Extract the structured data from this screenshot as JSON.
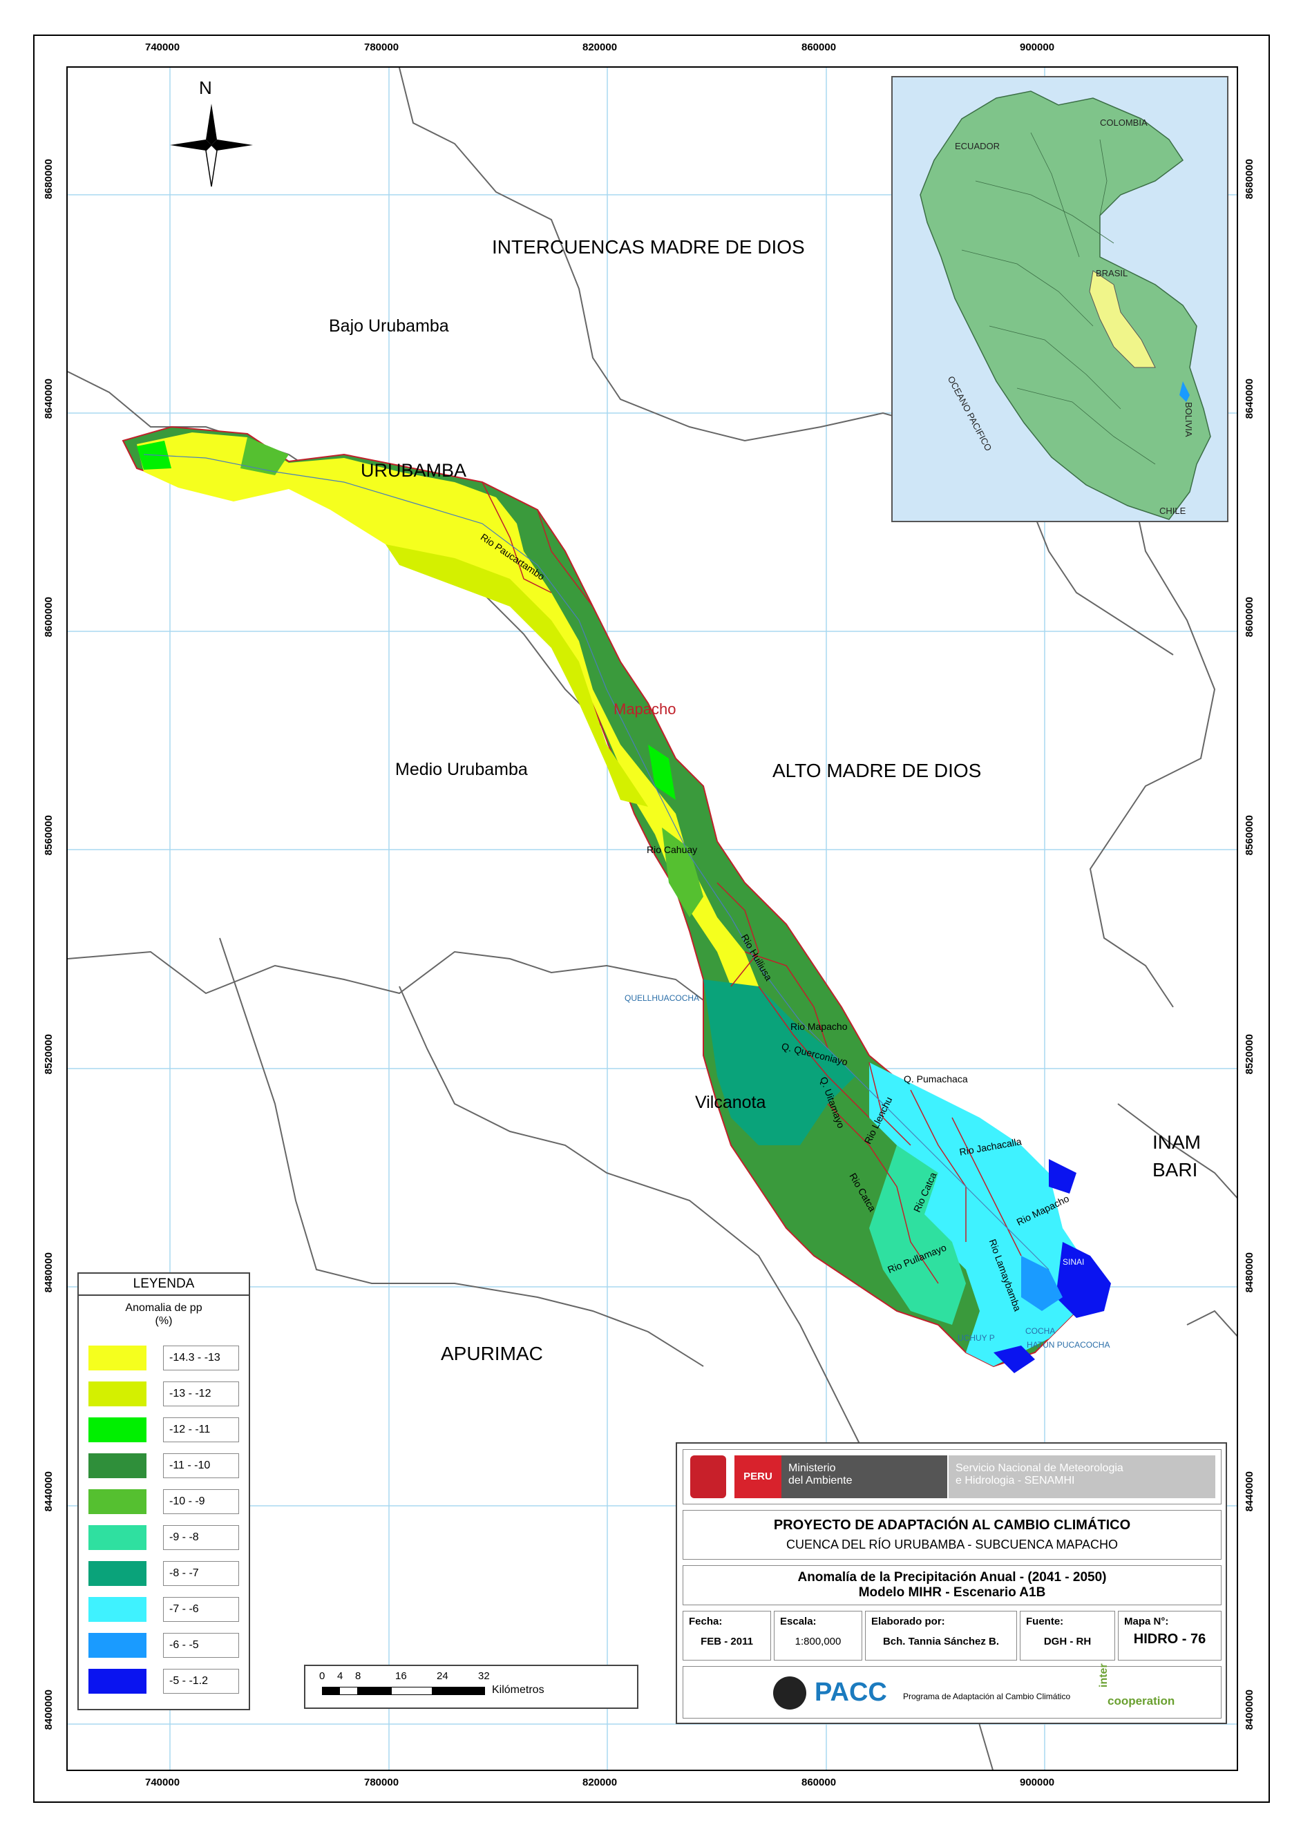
{
  "map": {
    "grid": {
      "x_ticks": [
        "740000",
        "780000",
        "820000",
        "860000",
        "900000"
      ],
      "y_ticks": [
        "8680000",
        "8640000",
        "8600000",
        "8560000",
        "8520000",
        "8480000",
        "8440000",
        "8400000"
      ]
    },
    "north_label": "N",
    "regions": {
      "intercuencas": "INTERCUENCAS MADRE DE DIOS",
      "bajo_urubamba": "Bajo Urubamba",
      "urubamba": "URUBAMBA",
      "medio_urubamba": "Medio Urubamba",
      "alto_madre": "ALTO MADRE DE DIOS",
      "vilcanota": "Vilcanota",
      "inam": "INAM",
      "bari": "BARI",
      "apurimac": "APURIMAC",
      "mapacho": "Mapacho"
    },
    "rivers": {
      "paucartambo": "Rio Paucartambo",
      "cahuay": "Rio Cahuay",
      "huiliusa": "Rio Huiliusa",
      "mapacho": "Rio Mapacho",
      "querconiayo": "Q. Querconiayo",
      "quitamayo": "Q. Uitamayo",
      "pumachaca": "Q. Pumachaca",
      "llenchu": "Rio Llenchu",
      "jachacalla": "Rio Jachacalla",
      "catca": "Rio Catca",
      "ccatcca": "Rio Catca",
      "mapacho2": "Rio Mapacho",
      "pulamayo": "Rio Pullamayo",
      "lamaybamba": "Rio Lamaybamba"
    },
    "lakes": {
      "quellhuacocha": "QUELLHUACOCHA",
      "uchuy": "UCHUY P",
      "pucacocha": "COCHA",
      "hatun": "HATUN PUCACOCHA",
      "sinai": "SINAI"
    },
    "inset": {
      "ecuador": "ECUADOR",
      "colombia": "COLOMBIA",
      "brasil": "BRASIL",
      "oceano": "OCEANO PACIFICO",
      "bolivia": "BOLIVIA",
      "chile": "CHILE"
    }
  },
  "legend": {
    "title": "LEYENDA",
    "subtitle": "Anomalia de pp",
    "unit": "(%)",
    "classes": [
      {
        "label": "-14.3 - -13",
        "color": "#f5ff1e"
      },
      {
        "label": "-13 - -12",
        "color": "#d4f000"
      },
      {
        "label": "-12 - -11",
        "color": "#00f000"
      },
      {
        "label": "-11 - -10",
        "color": "#2f8f3a"
      },
      {
        "label": "-10 - -9",
        "color": "#55c030"
      },
      {
        "label": "-9 - -8",
        "color": "#2fe0a0"
      },
      {
        "label": "-8 - -7",
        "color": "#0aa37a"
      },
      {
        "label": "-7 - -6",
        "color": "#3ff2ff"
      },
      {
        "label": "-6 - -5",
        "color": "#1a9bff"
      },
      {
        "label": "-5 - -1.2",
        "color": "#0a14f0"
      }
    ]
  },
  "scale": {
    "ticks": [
      "0",
      "4",
      "8",
      "16",
      "24",
      "32"
    ],
    "unit": "Kilómetros"
  },
  "title_block": {
    "peru": "PERU",
    "ministry_line1": "Ministerio",
    "ministry_line2": "del Ambiente",
    "senamhi_line1": "Servicio Nacional de Meteorologia",
    "senamhi_line2": "e Hidrologia - SENAMHI",
    "project_title": "PROYECTO DE ADAPTACIÓN AL CAMBIO CLIMÁTICO",
    "project_subtitle": "CUENCA DEL RÍO URUBAMBA - SUBCUENCA MAPACHO",
    "map_title_1": "Anomalía de la Precipitación Anual - (2041 - 2050)",
    "map_title_2": "Modelo MIHR - Escenario A1B",
    "fecha_label": "Fecha:",
    "fecha_value": "FEB - 2011",
    "escala_label": "Escala:",
    "escala_value": "1:800,000",
    "elaborado_label": "Elaborado por:",
    "elaborado_value": "Bch. Tannia Sánchez B.",
    "fuente_label": "Fuente:",
    "fuente_value": "DGH - RH",
    "mapa_label": "Mapa N°:",
    "mapa_value": "HIDRO - 76",
    "pacc": "PACC",
    "pacc_desc": "Programa de Adaptación al Cambio Climático",
    "inter": "inter",
    "cooperation": "cooperation"
  }
}
